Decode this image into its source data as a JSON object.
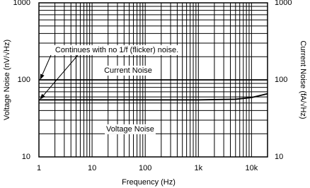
{
  "chart_data": {
    "type": "line",
    "x": [
      1,
      1000,
      5000,
      10000,
      20000
    ],
    "series": [
      {
        "name": "Current Noise",
        "color": "#000000",
        "axis": "y2",
        "values": [
          100,
          100,
          100,
          100,
          100
        ]
      },
      {
        "name": "Voltage Noise",
        "color": "#000000",
        "values": [
          55,
          55,
          56,
          59,
          66
        ]
      }
    ],
    "xlabel": "Frequency (Hz)",
    "ylabel": "Voltage Noise (nV/√Hz)",
    "y2label": "Current Noise (fA/√Hz)",
    "annotations": [
      "Continues with no 1/f (flicker) noise."
    ],
    "xlim": [
      1,
      20000
    ],
    "ylim": [
      10,
      1000
    ],
    "y2lim": [
      10,
      1000
    ],
    "xlog": true,
    "ylog": true,
    "xticks": [
      1,
      10,
      100,
      {
        "value": 1000,
        "label": "1k"
      },
      {
        "value": 10000,
        "label": "10k"
      }
    ],
    "yticks": [
      10,
      100,
      1000
    ],
    "y2ticks": [
      10,
      100,
      1000
    ],
    "xgrid": [
      2,
      3,
      4,
      5,
      6,
      7,
      8,
      9,
      20,
      30,
      40,
      50,
      60,
      70,
      80,
      90,
      200,
      300,
      400,
      500,
      600,
      700,
      800,
      900,
      2000,
      3000,
      4000,
      5000,
      6000,
      7000,
      8000,
      9000
    ],
    "ygrid": [
      20,
      30,
      40,
      50,
      60,
      70,
      80,
      90,
      200,
      300,
      400,
      500,
      600,
      700,
      800,
      900
    ]
  }
}
